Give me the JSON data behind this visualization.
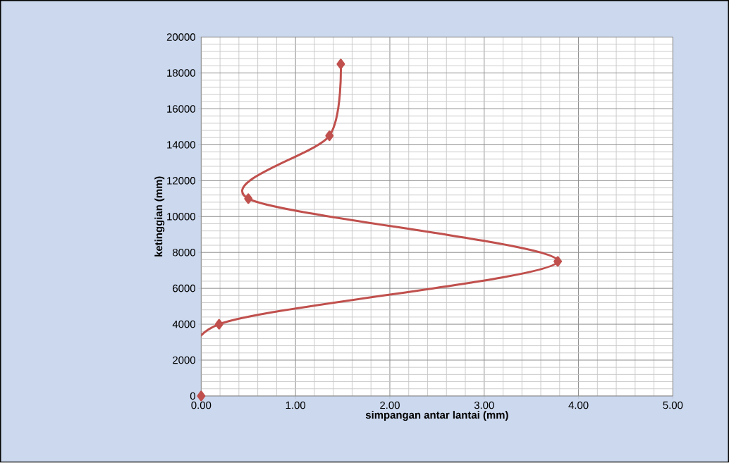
{
  "chart_data": {
    "type": "line",
    "xlabel": "simpangan antar lantai (mm)",
    "ylabel": "ketinggian (mm)",
    "x": [
      0,
      0.19,
      3.78,
      0.5,
      1.36,
      1.48
    ],
    "series": [
      {
        "color": "#c0504d",
        "values": [
          0,
          4000,
          7500,
          11000,
          14500,
          18500
        ]
      }
    ],
    "xlim": [
      0,
      5
    ],
    "ylim": [
      0,
      20000
    ],
    "xticks": [
      {
        "value": 0,
        "label": "0.00"
      },
      {
        "value": 1,
        "label": "1.00"
      },
      {
        "value": 2,
        "label": "2.00"
      },
      {
        "value": 3,
        "label": "3.00"
      },
      {
        "value": 4,
        "label": "4.00"
      },
      {
        "value": 5,
        "label": "5.00"
      }
    ],
    "yticks": [
      0,
      2000,
      4000,
      6000,
      8000,
      10000,
      12000,
      14000,
      16000,
      18000,
      20000
    ],
    "grid": true,
    "marker": "diamond",
    "line_style": "solid"
  }
}
